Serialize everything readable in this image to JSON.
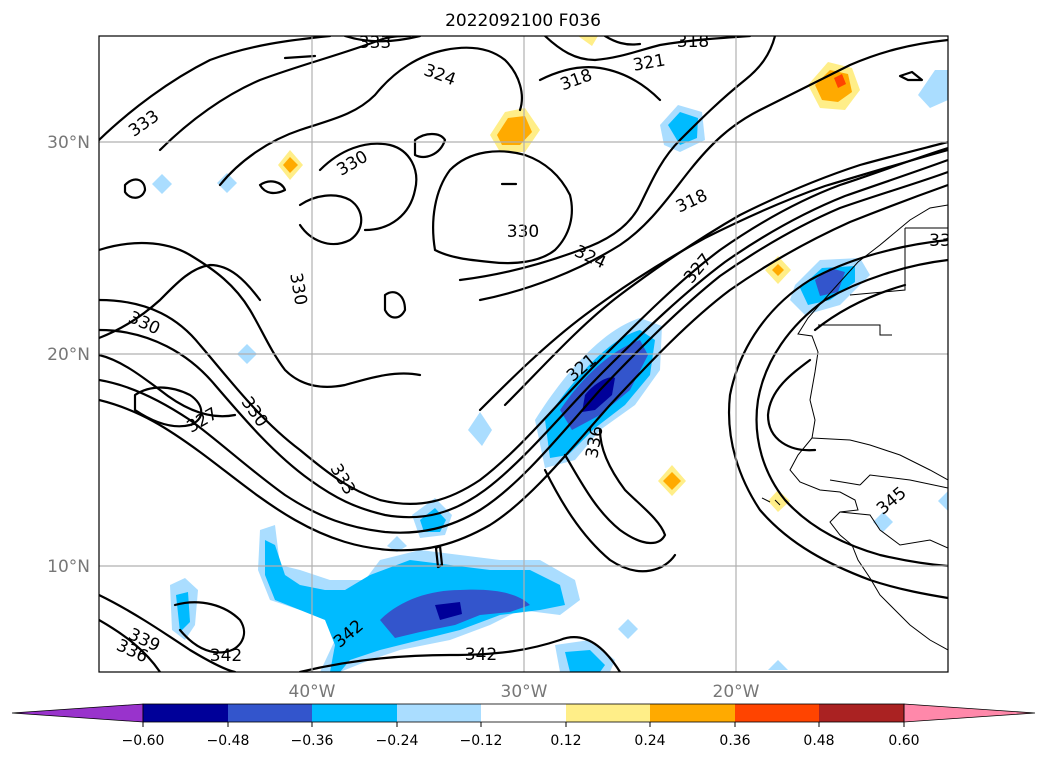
{
  "title": "2022092100 F036",
  "lat_labels": [
    "30°N",
    "20°N",
    "10°N"
  ],
  "lon_labels": [
    "40°W",
    "30°W",
    "20°W"
  ],
  "colorbar": {
    "tick_labels": [
      "−0.60",
      "−0.48",
      "−0.36",
      "−0.24",
      "−0.12",
      "0.12",
      "0.24",
      "0.36",
      "0.48",
      "0.60"
    ],
    "colors": [
      "#9933cc",
      "#000099",
      "#3355cc",
      "#00bbff",
      "#aaddff",
      "#ffffff",
      "#ffee88",
      "#ffaa00",
      "#ff4400",
      "#aa2222",
      "#ff88aa"
    ]
  },
  "contour_labels": [
    "333",
    "324",
    "318",
    "321",
    "318",
    "333",
    "330",
    "330",
    "324",
    "318",
    "327",
    "33",
    "330",
    "330",
    "327",
    "330",
    "333",
    "321",
    "336",
    "345",
    "339",
    "336",
    "342",
    "342",
    "342"
  ],
  "shading_colors": {
    "neg1": "#aaddff",
    "neg2": "#00bbff",
    "neg3": "#3355cc",
    "neg4": "#000099",
    "pos1": "#ffee88",
    "pos2": "#ffaa00",
    "pos3": "#ff4400"
  }
}
